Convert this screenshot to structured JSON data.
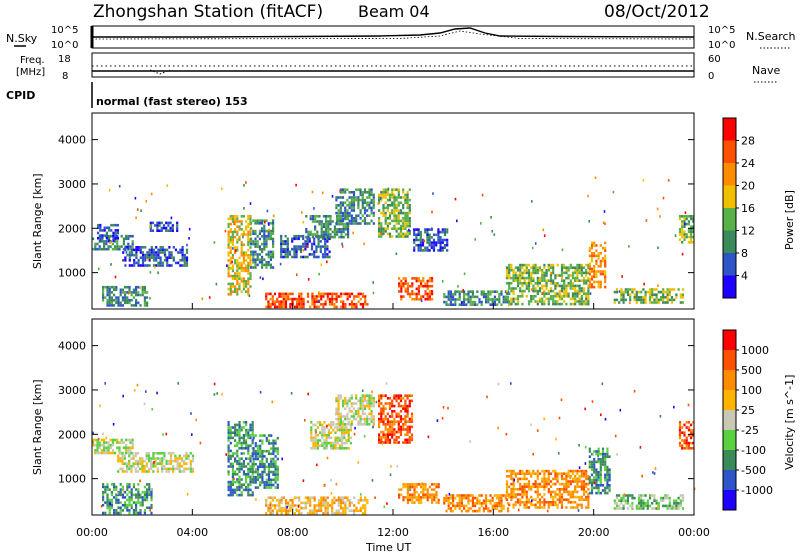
{
  "header": {
    "station": "Zhongshan Station (fitACF)",
    "beam": "Beam 04",
    "date": "08/Oct/2012"
  },
  "sky_panel": {
    "left_label": "N.Sky",
    "right_label": "N.Search",
    "left_ticks": [
      "10^5",
      "10^0"
    ],
    "right_ticks": [
      "10^5",
      "10^0"
    ]
  },
  "freq_panel": {
    "left_label_1": "Freq.",
    "left_label_2": "[MHz]",
    "right_label": "Nave",
    "left_ticks": [
      "18",
      "8"
    ],
    "right_ticks": [
      "60",
      "0"
    ]
  },
  "cpid": {
    "label": "CPID",
    "mode": "normal (fast stereo) 153"
  },
  "chart_data": [
    {
      "type": "heatmap",
      "name": "power",
      "ylabel": "Slant Range [km]",
      "y_ticks": [
        "4000",
        "3000",
        "2000",
        "1000"
      ],
      "ylim": [
        180,
        4600
      ],
      "xlim": [
        0,
        24
      ],
      "colorbar": {
        "label": "Power [dB]",
        "tick_labels": [
          "28",
          "24",
          "20",
          "16",
          "12",
          "8",
          "4"
        ],
        "colors": [
          "#1e00ff",
          "#2d55c8",
          "#3b8a5a",
          "#59b048",
          "#f0c000",
          "#ff8c00",
          "#ff5000",
          "#ff0000"
        ]
      },
      "echo_regions": [
        {
          "t0": 0.0,
          "t1": 1.6,
          "r0": 1550,
          "r1": 1850,
          "level": 2
        },
        {
          "t0": 0.2,
          "t1": 1.0,
          "r0": 1700,
          "r1": 2100,
          "level": 1
        },
        {
          "t0": 1.2,
          "t1": 3.8,
          "r0": 1150,
          "r1": 1600,
          "level": 1
        },
        {
          "t0": 0.4,
          "t1": 2.2,
          "r0": 250,
          "r1": 700,
          "level": 2
        },
        {
          "t0": 2.3,
          "t1": 3.4,
          "r0": 1950,
          "r1": 2150,
          "level": 1
        },
        {
          "t0": 5.4,
          "t1": 6.3,
          "r0": 500,
          "r1": 2300,
          "level": 4
        },
        {
          "t0": 6.3,
          "t1": 7.2,
          "r0": 1100,
          "r1": 2200,
          "level": 2
        },
        {
          "t0": 6.9,
          "t1": 11.0,
          "r0": 200,
          "r1": 550,
          "level": 6
        },
        {
          "t0": 7.5,
          "t1": 9.5,
          "r0": 1350,
          "r1": 1850,
          "level": 1
        },
        {
          "t0": 8.5,
          "t1": 10.2,
          "r0": 1800,
          "r1": 2300,
          "level": 2
        },
        {
          "t0": 9.7,
          "t1": 11.2,
          "r0": 2100,
          "r1": 2900,
          "level": 2
        },
        {
          "t0": 11.4,
          "t1": 12.7,
          "r0": 1800,
          "r1": 2900,
          "level": 3
        },
        {
          "t0": 12.2,
          "t1": 13.6,
          "r0": 400,
          "r1": 900,
          "level": 6
        },
        {
          "t0": 12.8,
          "t1": 14.2,
          "r0": 1500,
          "r1": 2000,
          "level": 1
        },
        {
          "t0": 14.0,
          "t1": 16.6,
          "r0": 250,
          "r1": 600,
          "level": 2
        },
        {
          "t0": 16.5,
          "t1": 19.8,
          "r0": 300,
          "r1": 1200,
          "level": 3
        },
        {
          "t0": 19.8,
          "t1": 20.5,
          "r0": 700,
          "r1": 1700,
          "level": 5
        },
        {
          "t0": 20.8,
          "t1": 23.6,
          "r0": 300,
          "r1": 650,
          "level": 3
        },
        {
          "t0": 23.4,
          "t1": 24.0,
          "r0": 1700,
          "r1": 2300,
          "level": 3
        }
      ]
    },
    {
      "type": "heatmap",
      "name": "velocity",
      "ylabel": "Slant Range [km]",
      "xlabel": "Time UT",
      "y_ticks": [
        "4000",
        "3000",
        "2000",
        "1000"
      ],
      "x_ticks": [
        "00:00",
        "04:00",
        "08:00",
        "12:00",
        "16:00",
        "20:00",
        "00:00"
      ],
      "ylim": [
        180,
        4600
      ],
      "xlim": [
        0,
        24
      ],
      "colorbar": {
        "label": "Velocity [m s^-1]",
        "tick_labels": [
          "1000",
          "500",
          "100",
          "25",
          "-25",
          "-100",
          "-500",
          "-1000"
        ],
        "colors": [
          "#1e00ff",
          "#2d55c8",
          "#3b8a5a",
          "#59d040",
          "#c8c8b4",
          "#ffb400",
          "#ff8c00",
          "#ff5000",
          "#ff0000"
        ]
      },
      "echo_regions": [
        {
          "t0": 0.0,
          "t1": 1.6,
          "r0": 1550,
          "r1": 1900,
          "level": 4
        },
        {
          "t0": 1.0,
          "t1": 4.0,
          "r0": 1150,
          "r1": 1600,
          "level": 4
        },
        {
          "t0": 0.4,
          "t1": 2.4,
          "r0": 250,
          "r1": 900,
          "level": 2
        },
        {
          "t0": 5.4,
          "t1": 6.4,
          "r0": 600,
          "r1": 2300,
          "level": 2
        },
        {
          "t0": 6.4,
          "t1": 7.4,
          "r0": 800,
          "r1": 2000,
          "level": 2
        },
        {
          "t0": 6.9,
          "t1": 11.0,
          "r0": 200,
          "r1": 600,
          "level": 5
        },
        {
          "t0": 8.7,
          "t1": 10.3,
          "r0": 1700,
          "r1": 2300,
          "level": 4
        },
        {
          "t0": 9.7,
          "t1": 11.2,
          "r0": 2200,
          "r1": 2900,
          "level": 4
        },
        {
          "t0": 11.4,
          "t1": 12.8,
          "r0": 1800,
          "r1": 2900,
          "level": 7
        },
        {
          "t0": 12.2,
          "t1": 13.8,
          "r0": 450,
          "r1": 900,
          "level": 6
        },
        {
          "t0": 14.0,
          "t1": 16.6,
          "r0": 250,
          "r1": 650,
          "level": 6
        },
        {
          "t0": 16.5,
          "t1": 19.8,
          "r0": 350,
          "r1": 1200,
          "level": 6
        },
        {
          "t0": 19.8,
          "t1": 20.6,
          "r0": 700,
          "r1": 1700,
          "level": 2
        },
        {
          "t0": 20.8,
          "t1": 23.6,
          "r0": 300,
          "r1": 650,
          "level": 3
        },
        {
          "t0": 23.4,
          "t1": 24.0,
          "r0": 1700,
          "r1": 2300,
          "level": 7
        }
      ]
    }
  ]
}
